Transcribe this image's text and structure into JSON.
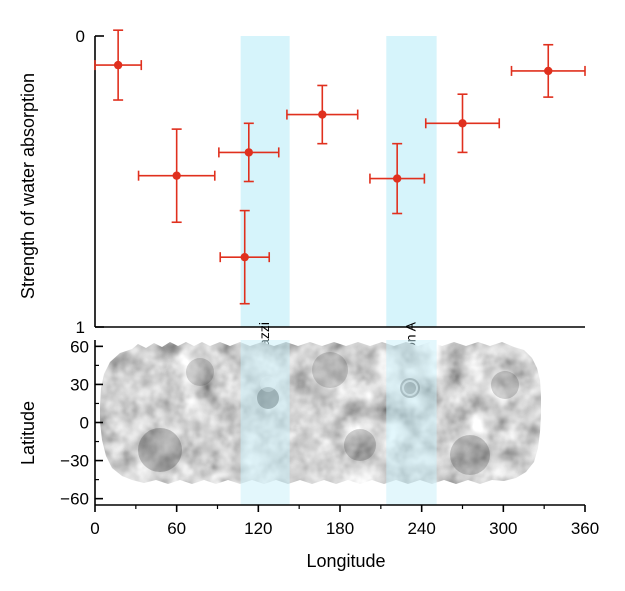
{
  "chart_data": [
    {
      "type": "scatter",
      "title": "",
      "xlabel": "",
      "ylabel": "Strength of water absorption",
      "xlim": [
        0,
        360
      ],
      "ylim": [
        0,
        1
      ],
      "y_inverted": true,
      "y_ticks": [
        "0",
        "1"
      ],
      "grid": false,
      "legend": "none",
      "colors": {
        "points": "#e0301e",
        "band": "#c8f0fa"
      },
      "series": [
        {
          "points": [
            {
              "x": 17,
              "y": 0.1,
              "xerr": 17,
              "yerr": 0.12
            },
            {
              "x": 60,
              "y": 0.48,
              "xerr": 28,
              "yerr": 0.16
            },
            {
              "x": 113,
              "y": 0.4,
              "xerr": 22,
              "yerr": 0.1
            },
            {
              "x": 110,
              "y": 0.76,
              "xerr": 18,
              "yerr": 0.16
            },
            {
              "x": 167,
              "y": 0.27,
              "xerr": 26,
              "yerr": 0.1
            },
            {
              "x": 222,
              "y": 0.49,
              "xerr": 20,
              "yerr": 0.12
            },
            {
              "x": 270,
              "y": 0.3,
              "xerr": 27,
              "yerr": 0.1
            },
            {
              "x": 333,
              "y": 0.12,
              "xerr": 27,
              "yerr": 0.09
            }
          ]
        }
      ],
      "bands": [
        {
          "label": "Piazzi",
          "x0": 107,
          "x1": 143
        },
        {
          "label": "Region A",
          "x0": 214,
          "x1": 251
        }
      ]
    },
    {
      "type": "heatmap",
      "title": "",
      "xlabel": "Longitude",
      "ylabel": "Latitude",
      "xlim": [
        0,
        360
      ],
      "ylim": [
        -65,
        65
      ],
      "x_ticks": [
        "0",
        "60",
        "120",
        "180",
        "240",
        "300",
        "360"
      ],
      "y_ticks": [
        "60",
        "30",
        "0",
        "−30",
        "−60"
      ],
      "colormap": "grayscale albedo map",
      "colors": {
        "low": "#5a5a5a",
        "high": "#d8d8d8"
      }
    }
  ]
}
